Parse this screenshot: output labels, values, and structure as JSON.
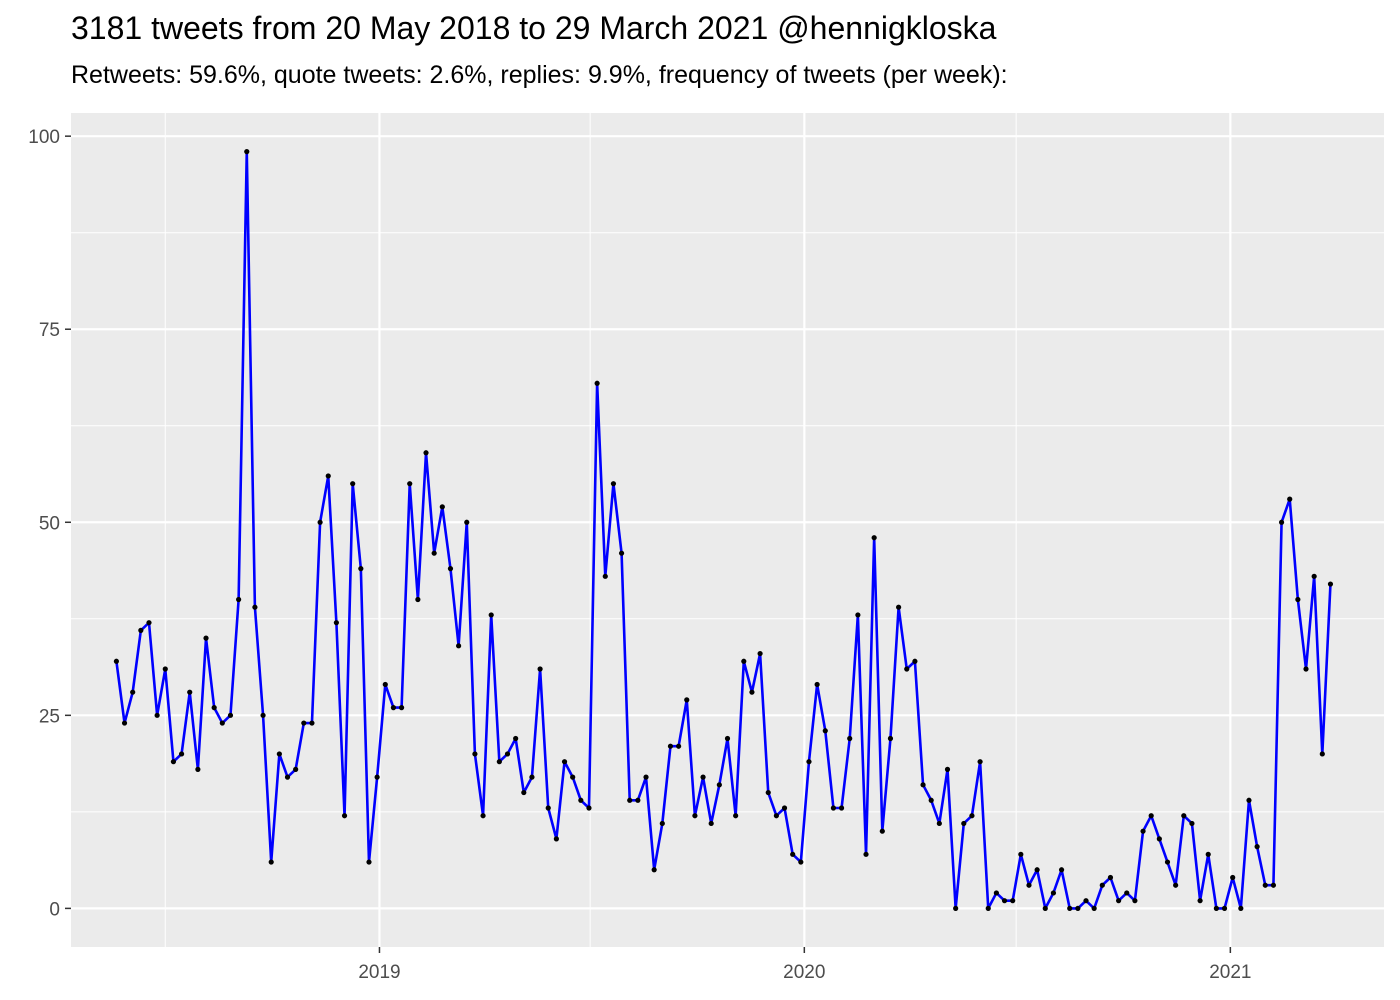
{
  "chart_data": {
    "type": "line",
    "title": "3181 tweets from 20 May 2018 to 29 March 2021 @hennigkloska",
    "subtitle": "Retweets: 59.6%, quote tweets: 2.6%, replies: 9.9%, frequency of tweets (per week):",
    "xlabel": "",
    "ylabel": "",
    "x_range": [
      "2018-05-20",
      "2021-03-28"
    ],
    "xlim": [
      "2018-04-11",
      "2021-05-13"
    ],
    "ylim": [
      -5,
      103
    ],
    "x_ticks": [
      {
        "date": "2019-01-01",
        "label": "2019"
      },
      {
        "date": "2020-01-01",
        "label": "2020"
      },
      {
        "date": "2021-01-01",
        "label": "2021"
      }
    ],
    "x_minor_ticks": [
      "2018-07-01",
      "2019-07-01",
      "2020-07-01"
    ],
    "y_ticks": [
      0,
      25,
      50,
      75,
      100
    ],
    "grid": true,
    "colors": {
      "line": "#0000ff",
      "point": "#000000",
      "panel": "#ebebeb",
      "grid": "#ffffff",
      "tick_text": "#4d4d4d"
    },
    "series": [
      {
        "values": [
          32,
          24,
          28,
          36,
          37,
          25,
          31,
          19,
          20,
          28,
          18,
          35,
          26,
          24,
          25,
          40,
          98,
          39,
          25,
          6,
          20,
          17,
          18,
          24,
          24,
          50,
          56,
          37,
          12,
          55,
          44,
          6,
          17,
          29,
          26,
          26,
          55,
          40,
          59,
          46,
          52,
          44,
          34,
          50,
          20,
          12,
          38,
          19,
          20,
          22,
          15,
          17,
          31,
          13,
          9,
          19,
          17,
          14,
          13,
          68,
          43,
          55,
          46,
          14,
          14,
          17,
          5,
          11,
          21,
          21,
          27,
          12,
          17,
          11,
          16,
          22,
          12,
          32,
          28,
          33,
          15,
          12,
          13,
          7,
          6,
          19,
          29,
          23,
          13,
          13,
          22,
          38,
          7,
          48,
          10,
          22,
          39,
          31,
          32,
          16,
          14,
          11,
          18,
          0,
          11,
          12,
          19,
          0,
          2,
          1,
          1,
          7,
          3,
          5,
          0,
          2,
          5,
          0,
          0,
          1,
          0,
          3,
          4,
          1,
          2,
          1,
          10,
          12,
          9,
          6,
          3,
          12,
          11,
          1,
          7,
          0,
          0,
          4,
          0,
          14,
          8,
          3,
          3,
          50,
          53,
          40,
          31,
          43,
          20,
          42
        ]
      }
    ]
  }
}
